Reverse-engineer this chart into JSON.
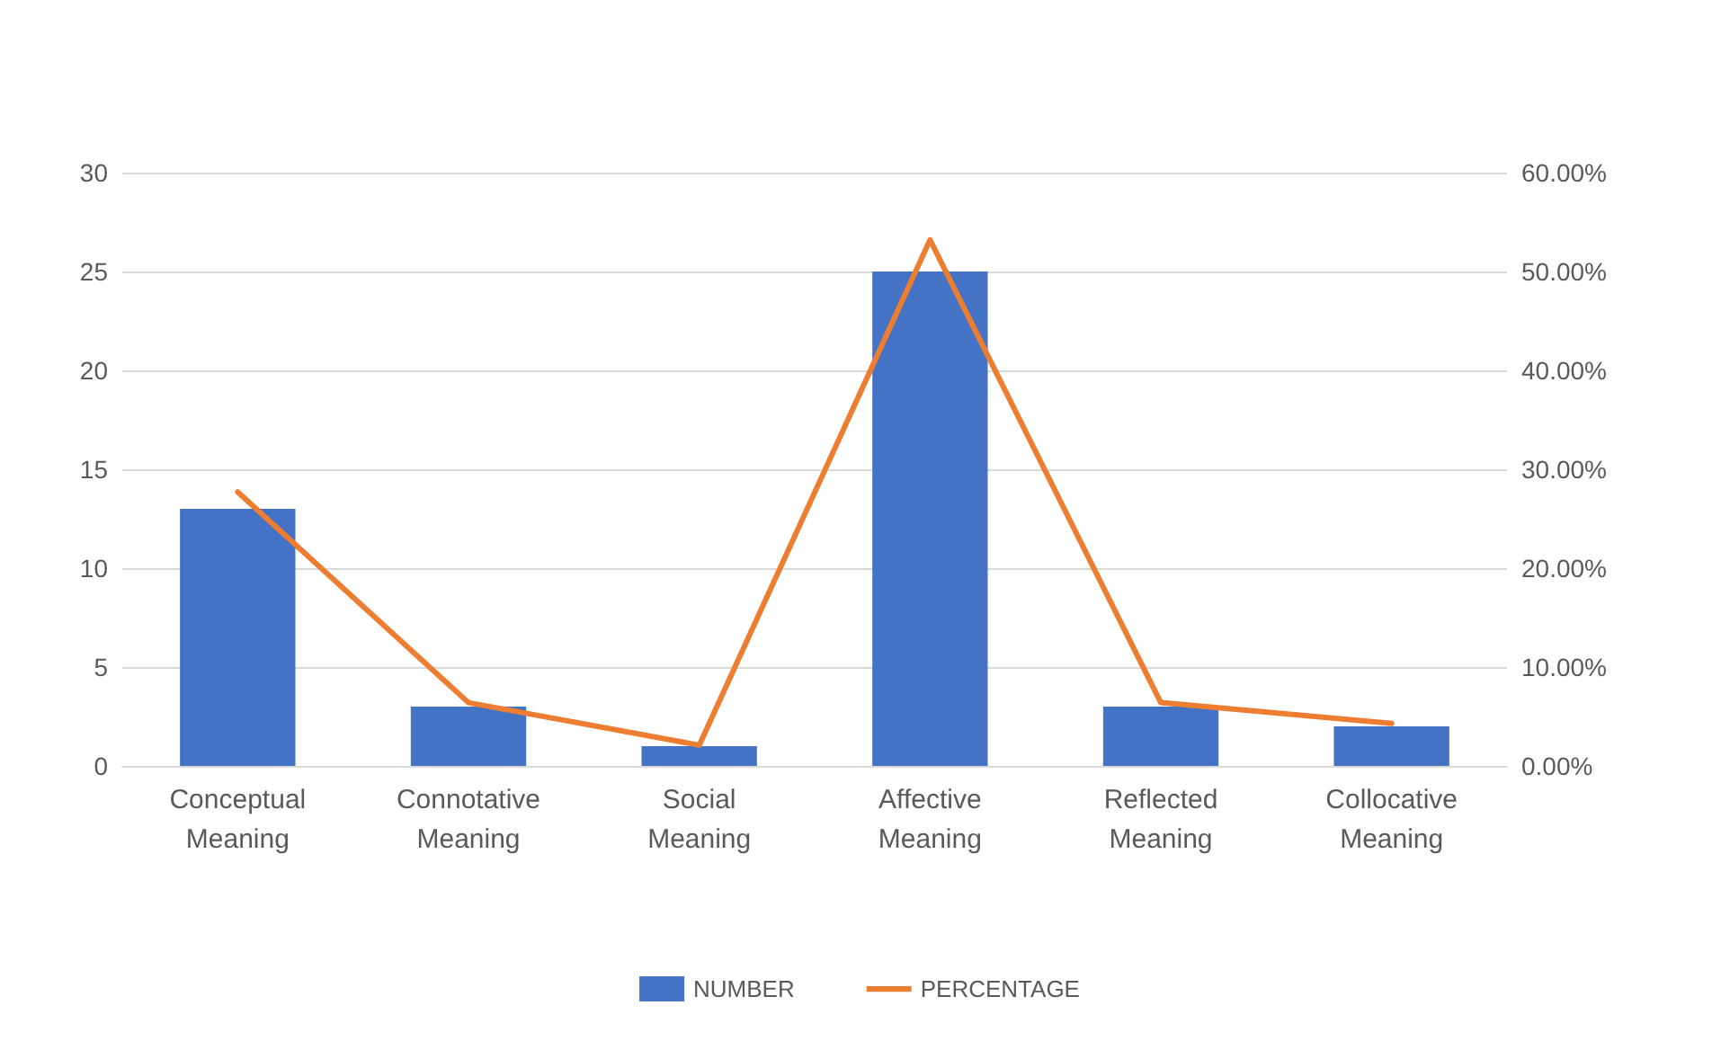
{
  "chart_data": {
    "type": "bar",
    "categories": [
      "Conceptual\nMeaning",
      "Connotative\nMeaning",
      "Social\nMeaning",
      "Affective\nMeaning",
      "Reflected\nMeaning",
      "Collocative\nMeaning"
    ],
    "series": [
      {
        "name": "NUMBER",
        "color": "#4472c4",
        "values": [
          13,
          3,
          1,
          25,
          3,
          2
        ]
      },
      {
        "name": "PERCENTAGE",
        "type": "line",
        "axis": "y2",
        "color": "#ed7d31",
        "values": [
          27.7,
          6.4,
          2.1,
          53.2,
          6.4,
          4.3
        ]
      }
    ],
    "ylim": [
      0,
      30
    ],
    "yticks": [
      0,
      5,
      10,
      15,
      20,
      25,
      30
    ],
    "y2lim": [
      0,
      60
    ],
    "y2ticks": [
      {
        "value": 0,
        "label": "0.00%"
      },
      {
        "value": 10,
        "label": "10.00%"
      },
      {
        "value": 20,
        "label": "20.00%"
      },
      {
        "value": 30,
        "label": "30.00%"
      },
      {
        "value": 40,
        "label": "40.00%"
      },
      {
        "value": 50,
        "label": "50.00%"
      },
      {
        "value": 60,
        "label": "60.00%"
      }
    ],
    "grid": "y",
    "legend": "bottom",
    "marker": "none",
    "line_style": "solid"
  }
}
